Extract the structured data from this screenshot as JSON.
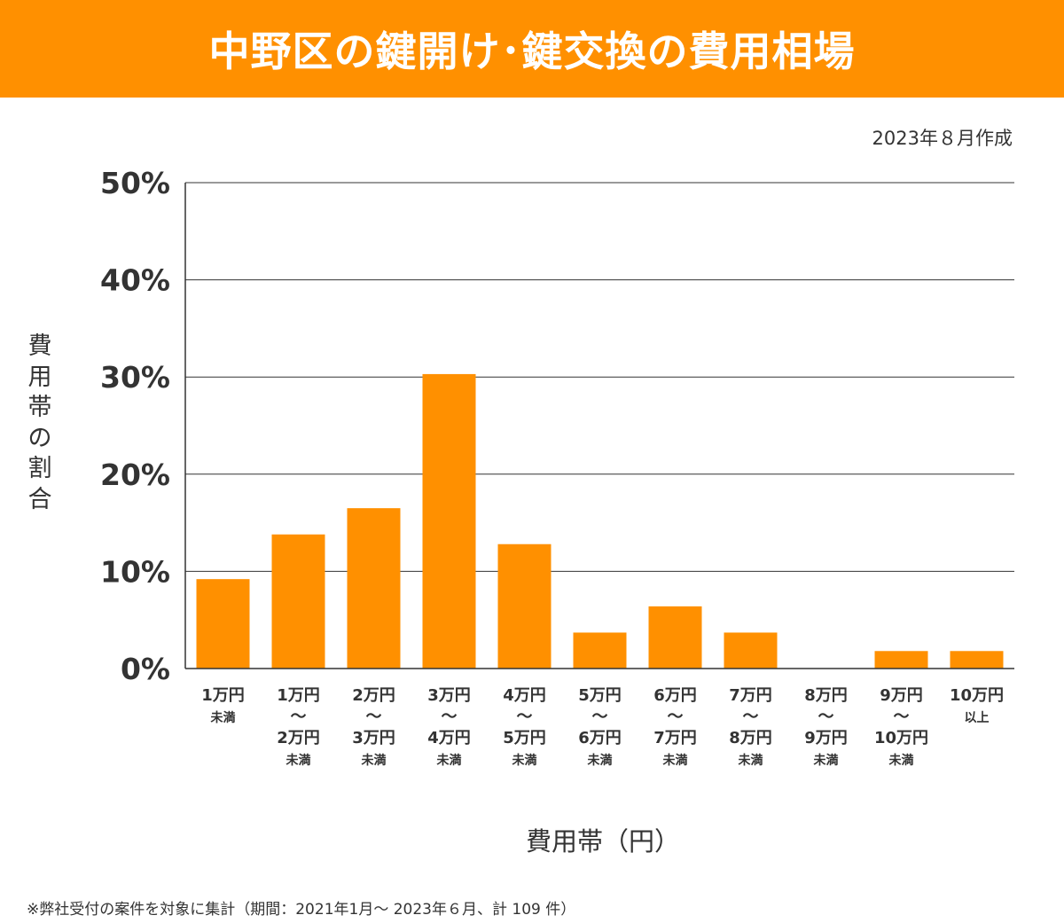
{
  "title": "中野区の鍵開け･鍵交換の費用相場",
  "date_note": "2023年８月作成",
  "footnote": "※弊社受付の案件を対象に集計（期間：2021年1月～ 2023年６月、計 109 件）",
  "colors": {
    "accent": "#FF9000",
    "bar": "#FF9000",
    "grid": "#333333"
  },
  "chart_data": {
    "type": "bar",
    "title": "中野区の鍵開け･鍵交換の費用相場",
    "xlabel": "費用帯（円）",
    "ylabel": "費用帯の割合",
    "ylim": [
      0,
      50
    ],
    "yticks": [
      0,
      10,
      20,
      30,
      40,
      50
    ],
    "ytick_labels": [
      "0%",
      "10%",
      "20%",
      "30%",
      "40%",
      "50%"
    ],
    "grid": true,
    "categories": [
      [
        "1万円",
        "未満"
      ],
      [
        "1万円",
        "〜",
        "2万円",
        "未満"
      ],
      [
        "2万円",
        "〜",
        "3万円",
        "未満"
      ],
      [
        "3万円",
        "〜",
        "4万円",
        "未満"
      ],
      [
        "4万円",
        "〜",
        "5万円",
        "未満"
      ],
      [
        "5万円",
        "〜",
        "6万円",
        "未満"
      ],
      [
        "6万円",
        "〜",
        "7万円",
        "未満"
      ],
      [
        "7万円",
        "〜",
        "8万円",
        "未満"
      ],
      [
        "8万円",
        "〜",
        "9万円",
        "未満"
      ],
      [
        "9万円",
        "〜",
        "10万円",
        "未満"
      ],
      [
        "10万円",
        "以上"
      ]
    ],
    "values": [
      9.2,
      13.8,
      16.5,
      30.3,
      12.8,
      3.7,
      6.4,
      3.7,
      0,
      1.8,
      1.8
    ]
  }
}
